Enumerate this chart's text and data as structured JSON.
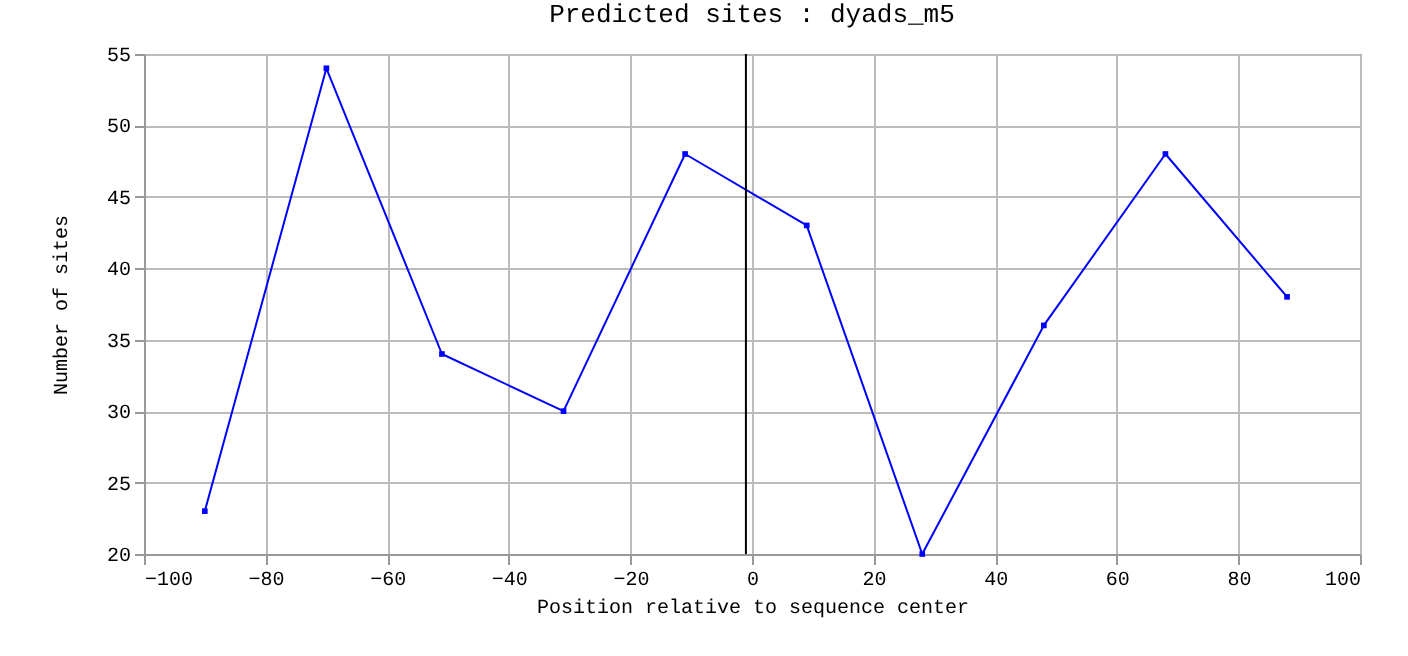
{
  "chart_data": {
    "type": "line",
    "title": "Predicted sites : dyads_m5",
    "xlabel": "Position relative to sequence center",
    "ylabel": "Number of sites",
    "x": [
      -90,
      -70,
      -51,
      -31,
      -11,
      9,
      28,
      48,
      68,
      88
    ],
    "series": [
      {
        "color": "#0000ff",
        "values": [
          23,
          54,
          34,
          30,
          48,
          43,
          20,
          36,
          48,
          38
        ]
      }
    ],
    "xlim": [
      -100,
      100
    ],
    "xticks": [
      -100,
      -80,
      -60,
      -40,
      -20,
      0,
      20,
      40,
      60,
      80,
      100
    ],
    "ylim": [
      20,
      55
    ],
    "yticks": [
      20,
      25,
      30,
      35,
      40,
      45,
      50,
      55
    ],
    "ref_lines": [
      {
        "axis": "x",
        "value": -1,
        "color": "#000000"
      }
    ],
    "grid": true,
    "marker": "square"
  }
}
